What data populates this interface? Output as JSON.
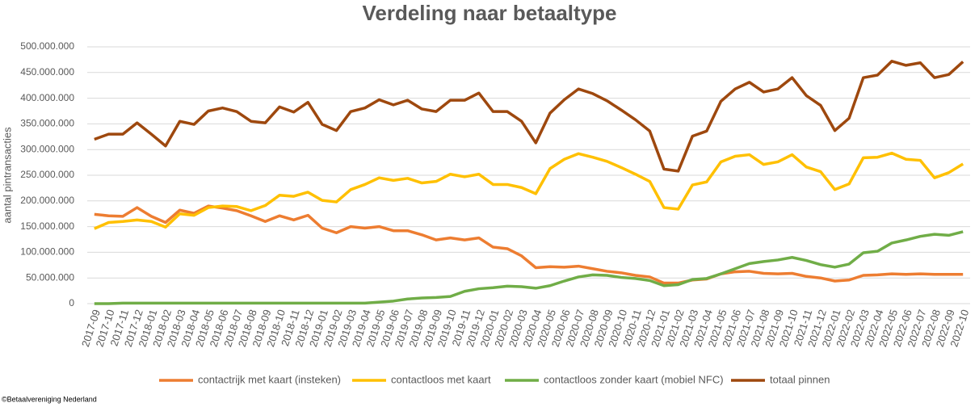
{
  "chart_data": {
    "type": "line",
    "title": "Verdeling naar betaaltype",
    "y_label": "aantal pintransacties",
    "categories": [
      "2017-09",
      "2017-10",
      "2017-11",
      "2017-12",
      "2018-01",
      "2018-02",
      "2018-03",
      "2018-04",
      "2018-05",
      "2018-06",
      "2018-07",
      "2018-08",
      "2018-09",
      "2018-10",
      "2018-11",
      "2018-12",
      "2019-01",
      "2019-02",
      "2019-03",
      "2019-04",
      "2019-05",
      "2019-06",
      "2019-07",
      "2019-08",
      "2019-09",
      "2019-10",
      "2019-11",
      "2019-12",
      "2020-01",
      "2020-02",
      "2020-03",
      "2020-04",
      "2020-05",
      "2020-06",
      "2020-07",
      "2020-08",
      "2020-09",
      "2020-10",
      "2020-11",
      "2020-12",
      "2021-01",
      "2021-02",
      "2021-03",
      "2021-04",
      "2021-05",
      "2021-06",
      "2021-07",
      "2021-08",
      "2021-09",
      "2021-10",
      "2021-11",
      "2021-12",
      "2022-01",
      "2022-02",
      "2022-03",
      "2022-04",
      "2022-05",
      "2022-06",
      "2022-07",
      "2022-08",
      "2022-09",
      "2022-10"
    ],
    "series": [
      {
        "name": "contactrijk met kaart (insteken)",
        "color": "#ed7d31",
        "values": [
          174000000,
          171000000,
          170000000,
          187000000,
          170000000,
          158000000,
          182000000,
          176000000,
          190000000,
          186000000,
          181000000,
          171000000,
          160000000,
          171000000,
          163000000,
          172000000,
          147000000,
          138000000,
          150000000,
          147000000,
          150000000,
          142000000,
          142000000,
          134000000,
          124000000,
          128000000,
          124000000,
          128000000,
          110000000,
          107000000,
          93000000,
          70000000,
          72000000,
          71000000,
          73000000,
          68000000,
          63000000,
          60000000,
          55000000,
          52000000,
          40000000,
          40000000,
          46000000,
          48000000,
          58000000,
          62000000,
          63000000,
          59000000,
          58000000,
          59000000,
          53000000,
          50000000,
          44000000,
          46000000,
          55000000,
          56000000,
          58000000,
          57000000,
          58000000,
          57000000,
          57000000,
          57000000
        ]
      },
      {
        "name": "contactloos met kaart",
        "color": "#ffc000",
        "values": [
          146000000,
          158000000,
          160000000,
          163000000,
          160000000,
          149000000,
          175000000,
          172000000,
          187000000,
          190000000,
          189000000,
          181000000,
          191000000,
          211000000,
          209000000,
          217000000,
          201000000,
          198000000,
          222000000,
          232000000,
          245000000,
          240000000,
          244000000,
          235000000,
          238000000,
          252000000,
          247000000,
          252000000,
          232000000,
          232000000,
          226000000,
          214000000,
          263000000,
          281000000,
          292000000,
          285000000,
          277000000,
          265000000,
          252000000,
          238000000,
          187000000,
          184000000,
          231000000,
          237000000,
          276000000,
          287000000,
          290000000,
          271000000,
          276000000,
          290000000,
          266000000,
          257000000,
          222000000,
          233000000,
          284000000,
          285000000,
          293000000,
          281000000,
          279000000,
          245000000,
          255000000,
          272000000
        ]
      },
      {
        "name": "contactloos zonder kaart (mobiel NFC)",
        "color": "#70ad47",
        "values": [
          0,
          0,
          1000000,
          1000000,
          1000000,
          1000000,
          1000000,
          1000000,
          1000000,
          1000000,
          1000000,
          1000000,
          1000000,
          1000000,
          1000000,
          1000000,
          1000000,
          1000000,
          1000000,
          1000000,
          3000000,
          5000000,
          9000000,
          11000000,
          12000000,
          14000000,
          24000000,
          29000000,
          31000000,
          34000000,
          33000000,
          30000000,
          35000000,
          44000000,
          52000000,
          56000000,
          55000000,
          51000000,
          49000000,
          45000000,
          35000000,
          37000000,
          47000000,
          49000000,
          58000000,
          68000000,
          78000000,
          82000000,
          85000000,
          90000000,
          84000000,
          76000000,
          71000000,
          77000000,
          99000000,
          102000000,
          118000000,
          124000000,
          131000000,
          135000000,
          133000000,
          140000000
        ]
      },
      {
        "name": "totaal pinnen",
        "color": "#9e480e",
        "values": [
          320000000,
          330000000,
          330000000,
          352000000,
          330000000,
          307000000,
          355000000,
          349000000,
          375000000,
          381000000,
          374000000,
          355000000,
          352000000,
          383000000,
          373000000,
          392000000,
          349000000,
          337000000,
          374000000,
          381000000,
          397000000,
          387000000,
          396000000,
          379000000,
          374000000,
          396000000,
          396000000,
          410000000,
          374000000,
          374000000,
          355000000,
          313000000,
          371000000,
          397000000,
          418000000,
          409000000,
          395000000,
          377000000,
          358000000,
          336000000,
          262000000,
          258000000,
          326000000,
          336000000,
          394000000,
          418000000,
          431000000,
          412000000,
          418000000,
          440000000,
          405000000,
          386000000,
          337000000,
          361000000,
          440000000,
          445000000,
          472000000,
          464000000,
          469000000,
          440000000,
          446000000,
          471000000
        ]
      }
    ],
    "ylim": [
      0,
      500000000
    ],
    "yticks": [
      0,
      {
        "value": 50000000,
        "label": "50.000.000"
      },
      {
        "value": 100000000,
        "label": "100.000.000"
      },
      {
        "value": 150000000,
        "label": "150.000.000"
      },
      {
        "value": 200000000,
        "label": "200.000.000"
      },
      {
        "value": 250000000,
        "label": "250.000.000"
      },
      {
        "value": 300000000,
        "label": "300.000.000"
      },
      {
        "value": 350000000,
        "label": "350.000.000"
      },
      {
        "value": 400000000,
        "label": "400.000.000"
      },
      {
        "value": 450000000,
        "label": "450.000.000"
      },
      {
        "value": 500000000,
        "label": "500.000.000"
      }
    ],
    "grid": true,
    "legend": "bottom"
  },
  "footer": "©Betaalvereniging Nederland"
}
